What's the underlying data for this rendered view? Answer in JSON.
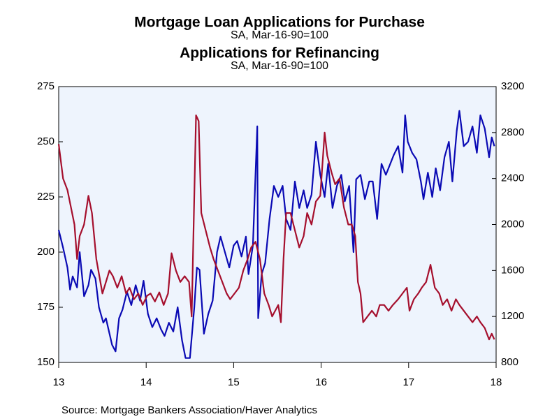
{
  "chart_data": {
    "type": "line",
    "series": [
      {
        "name": "Mortgage Loan Applications for Purchase",
        "subtitle": "SA, Mar-16-90=100",
        "color": "#0a0ab4",
        "axis": "y",
        "x": [
          13.0,
          13.05,
          13.1,
          13.13,
          13.16,
          13.21,
          13.24,
          13.29,
          13.34,
          13.37,
          13.42,
          13.46,
          13.51,
          13.54,
          13.61,
          13.65,
          13.69,
          13.73,
          13.78,
          13.83,
          13.88,
          13.93,
          13.97,
          14.02,
          14.07,
          14.12,
          14.17,
          14.21,
          14.26,
          14.31,
          14.36,
          14.41,
          14.45,
          14.5,
          14.55,
          14.58,
          14.61,
          14.66,
          14.71,
          14.76,
          14.81,
          14.85,
          14.9,
          14.95,
          15.0,
          15.04,
          15.09,
          15.14,
          15.17,
          15.22,
          15.27,
          15.28,
          15.32,
          15.36,
          15.41,
          15.46,
          15.51,
          15.56,
          15.6,
          15.65,
          15.7,
          15.75,
          15.8,
          15.84,
          15.89,
          15.94,
          15.99,
          16.04,
          16.08,
          16.13,
          16.18,
          16.23,
          16.27,
          16.32,
          16.37,
          16.4,
          16.45,
          16.5,
          16.55,
          16.59,
          16.64,
          16.69,
          16.74,
          16.79,
          16.83,
          16.88,
          16.93,
          16.96,
          16.99,
          17.04,
          17.09,
          17.14,
          17.17,
          17.22,
          17.27,
          17.31,
          17.36,
          17.41,
          17.46,
          17.5,
          17.55,
          17.58,
          17.63,
          17.68,
          17.73,
          17.78,
          17.82,
          17.87,
          17.92,
          17.95,
          17.98
        ],
        "values": [
          210,
          202,
          193,
          183,
          189,
          184,
          200,
          180,
          185,
          192,
          188,
          175,
          168,
          170,
          158,
          155,
          170,
          174,
          182,
          176,
          185,
          178,
          187,
          172,
          166,
          170,
          165,
          162,
          168,
          164,
          175,
          160,
          152,
          152,
          175,
          193,
          192,
          163,
          172,
          178,
          200,
          207,
          200,
          193,
          203,
          205,
          198,
          207,
          190,
          203,
          257,
          170,
          190,
          195,
          215,
          230,
          225,
          230,
          215,
          210,
          232,
          220,
          228,
          220,
          226,
          250,
          235,
          225,
          240,
          220,
          230,
          235,
          223,
          230,
          200,
          233,
          235,
          224,
          232,
          232,
          215,
          240,
          235,
          240,
          244,
          248,
          236,
          262,
          250,
          245,
          242,
          232,
          224,
          236,
          225,
          238,
          228,
          243,
          250,
          232,
          255,
          264,
          248,
          250,
          257,
          245,
          262,
          256,
          243,
          252,
          248
        ]
      },
      {
        "name": "Applications for Refinancing",
        "subtitle": "SA, Mar-16-90=100",
        "color": "#a50f2d",
        "axis": "y2",
        "x": [
          13.0,
          13.05,
          13.1,
          13.14,
          13.18,
          13.21,
          13.24,
          13.29,
          13.34,
          13.38,
          13.43,
          13.5,
          13.54,
          13.58,
          13.62,
          13.67,
          13.72,
          13.77,
          13.81,
          13.86,
          13.91,
          13.96,
          14.01,
          14.05,
          14.1,
          14.15,
          14.2,
          14.25,
          14.29,
          14.34,
          14.39,
          14.44,
          14.49,
          14.52,
          14.57,
          14.6,
          14.63,
          14.68,
          14.73,
          14.77,
          14.82,
          14.87,
          14.92,
          14.96,
          15.01,
          15.06,
          15.11,
          15.16,
          15.2,
          15.25,
          15.3,
          15.35,
          15.4,
          15.44,
          15.51,
          15.54,
          15.57,
          15.6,
          15.65,
          15.7,
          15.75,
          15.8,
          15.84,
          15.89,
          15.94,
          15.99,
          16.04,
          16.07,
          16.12,
          16.16,
          16.21,
          16.26,
          16.31,
          16.35,
          16.39,
          16.42,
          16.45,
          16.48,
          16.53,
          16.58,
          16.63,
          16.67,
          16.72,
          16.77,
          16.82,
          16.88,
          16.93,
          16.98,
          17.01,
          17.06,
          17.11,
          17.15,
          17.2,
          17.25,
          17.3,
          17.35,
          17.39,
          17.44,
          17.49,
          17.54,
          17.58,
          17.63,
          17.68,
          17.73,
          17.78,
          17.82,
          17.87,
          17.92,
          17.95,
          17.98
        ],
        "values": [
          2700,
          2400,
          2300,
          2150,
          2000,
          1700,
          1900,
          2000,
          2250,
          2100,
          1700,
          1400,
          1500,
          1600,
          1550,
          1450,
          1550,
          1400,
          1450,
          1350,
          1400,
          1300,
          1380,
          1400,
          1330,
          1410,
          1300,
          1400,
          1750,
          1600,
          1500,
          1550,
          1500,
          1200,
          2950,
          2900,
          2100,
          1950,
          1800,
          1700,
          1600,
          1500,
          1400,
          1350,
          1400,
          1450,
          1600,
          1700,
          1800,
          1850,
          1700,
          1400,
          1300,
          1200,
          1300,
          1150,
          1700,
          2100,
          2100,
          1950,
          1800,
          1900,
          2100,
          2000,
          2200,
          2250,
          2800,
          2600,
          2450,
          2350,
          2400,
          2150,
          2000,
          2000,
          1900,
          1500,
          1400,
          1150,
          1200,
          1250,
          1200,
          1300,
          1300,
          1250,
          1300,
          1350,
          1400,
          1450,
          1250,
          1350,
          1400,
          1450,
          1500,
          1650,
          1450,
          1400,
          1300,
          1350,
          1250,
          1350,
          1300,
          1250,
          1200,
          1150,
          1200,
          1150,
          1100,
          1000,
          1050,
          1000
        ]
      }
    ],
    "xlim": [
      13,
      18
    ],
    "xticks": [
      13,
      14,
      15,
      16,
      17,
      18
    ],
    "ylim": [
      150,
      275
    ],
    "yticks": [
      150,
      175,
      200,
      225,
      250,
      275
    ],
    "y2lim": [
      800,
      3200
    ],
    "y2ticks": [
      800,
      1200,
      1600,
      2000,
      2400,
      2800,
      3200
    ],
    "source": "Source:  Mortgage Bankers Association/Haver Analytics"
  }
}
